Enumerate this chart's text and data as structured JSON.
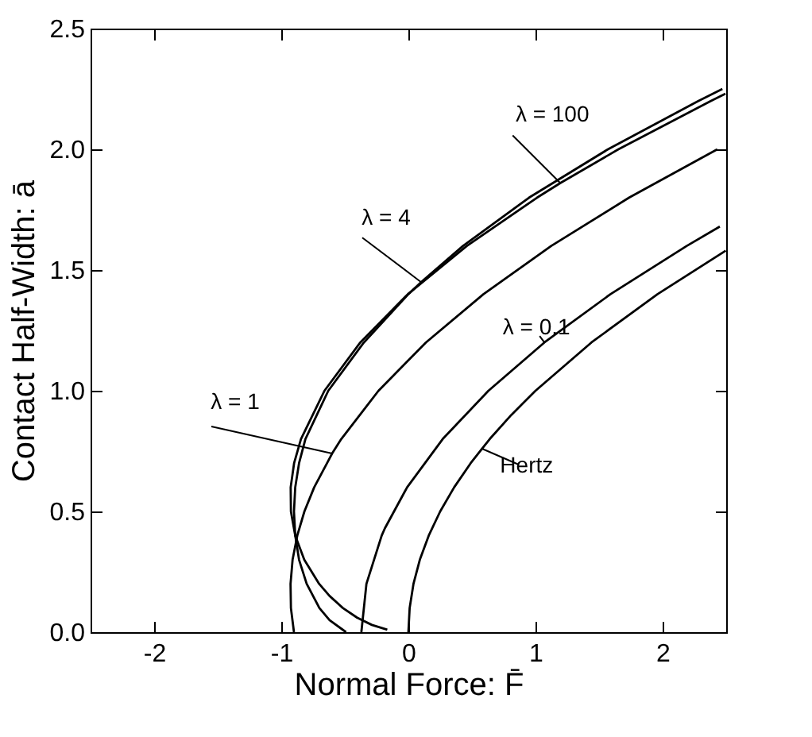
{
  "chart_data": {
    "type": "line",
    "xlabel": "Normal Force:  F̄",
    "ylabel": "Contact Half-Width:  ā",
    "xlim": [
      -2.5,
      2.5
    ],
    "ylim": [
      0,
      2.5
    ],
    "xticks": [
      -2,
      -1,
      0,
      1,
      2
    ],
    "yticks": [
      {
        "value": 0,
        "label": "0.0"
      },
      {
        "value": 0.5,
        "label": "0.5"
      },
      {
        "value": 1,
        "label": "1.0"
      },
      {
        "value": 1.5,
        "label": "1.5"
      },
      {
        "value": 2,
        "label": "2.0"
      },
      {
        "value": 2.5,
        "label": "2.5"
      }
    ],
    "grid": false,
    "series": [
      {
        "name": "λ = 100",
        "color": "#000000",
        "x": [
          -0.166,
          -0.287,
          -0.403,
          -0.515,
          -0.62,
          -0.702,
          -0.819,
          -0.89,
          -0.924,
          -0.926,
          -0.899,
          -0.845,
          -0.66,
          -0.378,
          -0.004,
          0.46,
          1.013,
          1.195,
          1.652,
          2.378,
          2.494
        ],
        "values": [
          0.01,
          0.03,
          0.06,
          0.1,
          0.15,
          0.2,
          0.3,
          0.4,
          0.5,
          0.6,
          0.7,
          0.8,
          1.0,
          1.2,
          1.4,
          1.6,
          1.8,
          1.86,
          2.0,
          2.2,
          2.23
        ]
      },
      {
        "name": "λ = 4",
        "color": "#000000",
        "x": [
          -0.49,
          -0.62,
          -0.7,
          -0.8,
          -0.86,
          -0.89,
          -0.9,
          -0.89,
          -0.86,
          -0.81,
          -0.63,
          -0.35,
          0.0,
          0.1,
          0.43,
          0.95,
          1.57,
          2.28,
          2.47
        ],
        "values": [
          0,
          0.05,
          0.1,
          0.2,
          0.3,
          0.4,
          0.5,
          0.6,
          0.7,
          0.8,
          1.0,
          1.2,
          1.4,
          1.45,
          1.6,
          1.8,
          2.0,
          2.2,
          2.25
        ]
      },
      {
        "name": "λ = 1",
        "color": "#000000",
        "x": [
          -0.9,
          -0.924,
          -0.927,
          -0.911,
          -0.874,
          -0.818,
          -0.741,
          -0.6,
          -0.528,
          -0.235,
          0.138,
          0.591,
          1.124,
          1.737,
          2.43
        ],
        "values": [
          0,
          0.1,
          0.2,
          0.3,
          0.4,
          0.5,
          0.6,
          0.74,
          0.8,
          1.0,
          1.2,
          1.4,
          1.6,
          1.8,
          2.0
        ]
      },
      {
        "name": "λ = 0.1",
        "color": "#000000",
        "x": [
          -0.37,
          -0.33,
          -0.21,
          -0.185,
          -0.01,
          0.27,
          0.63,
          1.07,
          1.59,
          2.19,
          2.45
        ],
        "values": [
          0,
          0.2,
          0.4,
          0.43,
          0.6,
          0.8,
          1.0,
          1.2,
          1.4,
          1.6,
          1.68
        ]
      },
      {
        "name": "Hertz",
        "color": "#000000",
        "x": [
          0,
          0.01,
          0.04,
          0.09,
          0.16,
          0.25,
          0.36,
          0.49,
          0.58,
          0.64,
          0.81,
          1.0,
          1.44,
          1.96,
          2.4964
        ],
        "values": [
          0,
          0.1,
          0.2,
          0.3,
          0.4,
          0.5,
          0.6,
          0.7,
          0.76,
          0.8,
          0.9,
          1.0,
          1.2,
          1.4,
          1.58
        ]
      }
    ]
  }
}
